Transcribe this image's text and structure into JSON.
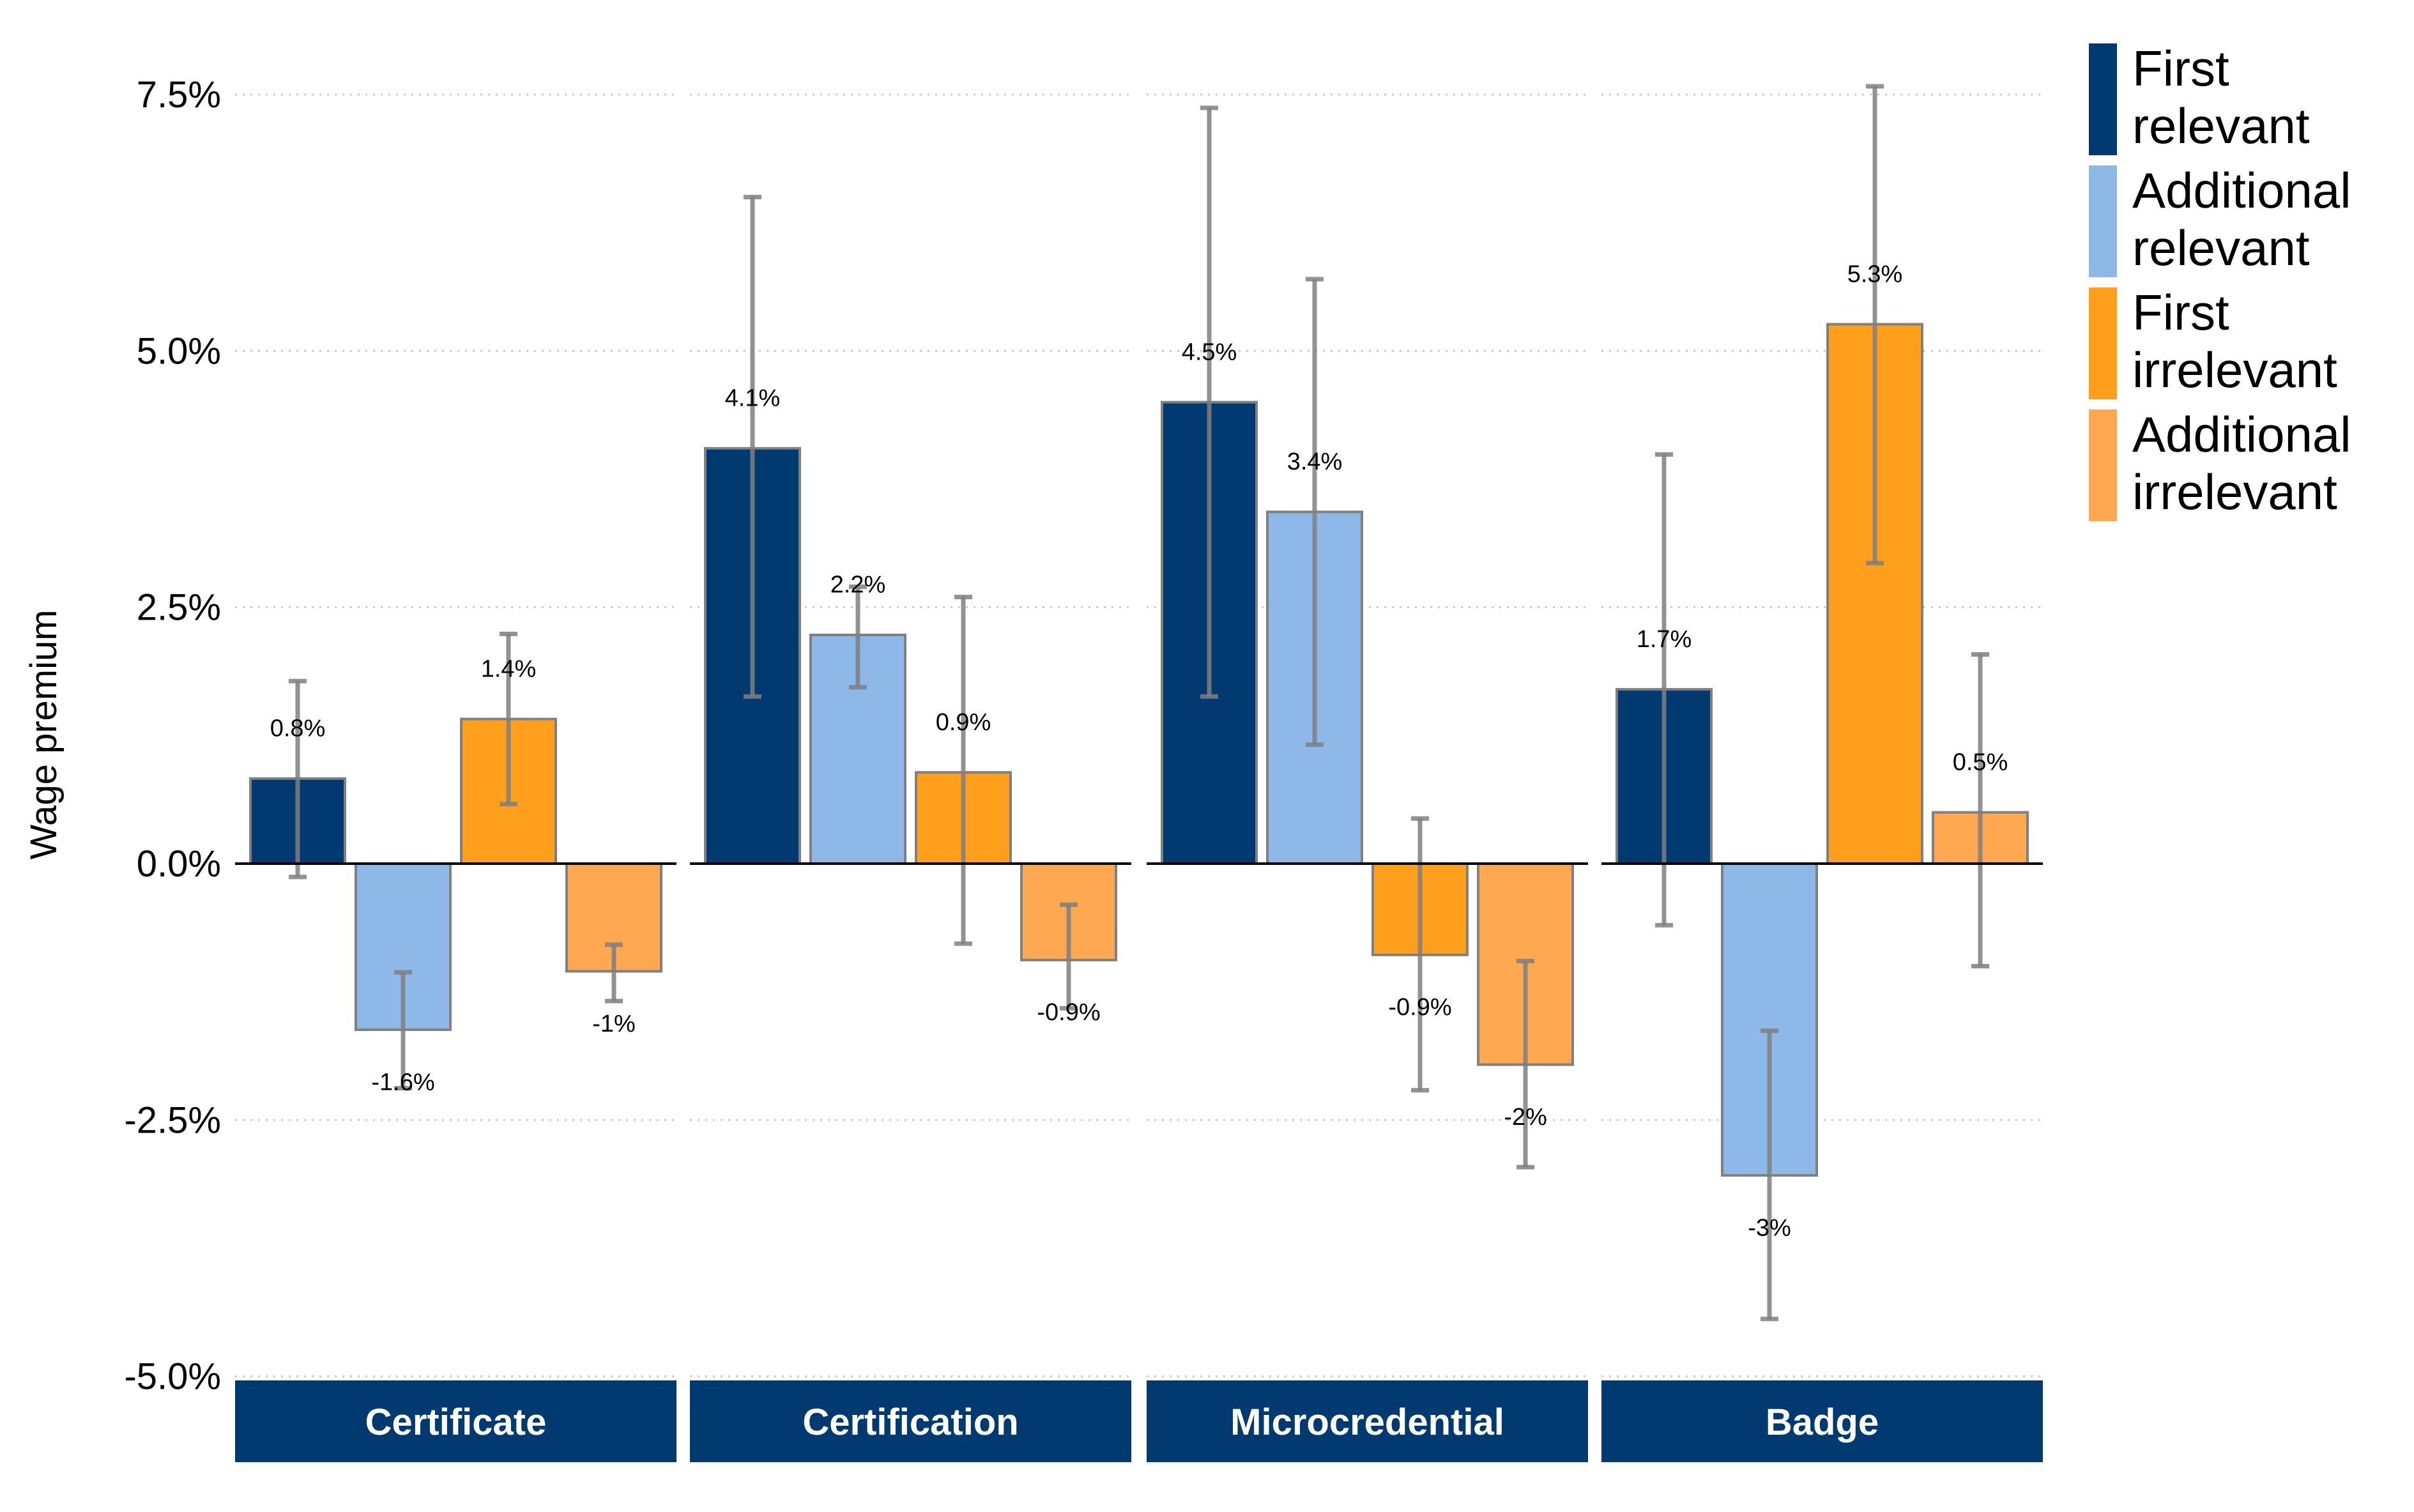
{
  "chart_data": {
    "type": "bar",
    "title": "",
    "xlabel": "",
    "ylabel": "Wage premium",
    "ylim": [
      -5,
      7.5
    ],
    "y_ticks": [
      "7.5%",
      "5.0%",
      "2.5%",
      "0.0%",
      "-2.5%",
      "-5.0%"
    ],
    "y_tick_values": [
      7.5,
      5.0,
      2.5,
      0.0,
      -2.5,
      -5.0
    ],
    "grid": "horizontal dotted",
    "legend_placement": "right",
    "facets": [
      "Certificate",
      "Certification",
      "Microcredential",
      "Badge"
    ],
    "series": [
      {
        "name": "First relevant",
        "color": "#003a70",
        "values": [
          0.83,
          4.05,
          4.5,
          1.7
        ],
        "labels": [
          "0.8%",
          "4.1%",
          "4.5%",
          "1.7%"
        ],
        "ci_low": [
          -0.13,
          1.63,
          1.63,
          -0.6
        ],
        "ci_high": [
          1.78,
          6.5,
          7.37,
          3.99
        ]
      },
      {
        "name": "Additional relevant",
        "color": "#8db8e8",
        "values": [
          -1.62,
          2.23,
          3.43,
          -3.04
        ],
        "labels": [
          "-1.6%",
          "2.2%",
          "3.4%",
          "-3%"
        ],
        "ci_low": [
          -2.19,
          1.72,
          1.16,
          -4.44
        ],
        "ci_high": [
          -1.06,
          2.7,
          5.7,
          -1.63
        ]
      },
      {
        "name": "First irrelevant",
        "color": "#ff9f1c",
        "values": [
          1.41,
          0.89,
          -0.89,
          5.26
        ],
        "labels": [
          "1.4%",
          "0.9%",
          "-0.9%",
          "5.3%"
        ],
        "ci_low": [
          0.58,
          -0.78,
          -2.21,
          2.93
        ],
        "ci_high": [
          2.24,
          2.6,
          0.44,
          7.58
        ]
      },
      {
        "name": "Additional irrelevant",
        "color": "#ffa852",
        "values": [
          -1.05,
          -0.94,
          -1.96,
          0.5
        ],
        "labels": [
          "-1%",
          "-0.9%",
          "-2%",
          "0.5%"
        ],
        "ci_low": [
          -1.34,
          -1.41,
          -2.96,
          -1.0
        ],
        "ci_high": [
          -0.79,
          -0.4,
          -0.95,
          2.04
        ]
      }
    ],
    "legend": [
      {
        "line1": "First",
        "line2": "relevant"
      },
      {
        "line1": "Additional",
        "line2": "relevant"
      },
      {
        "line1": "First",
        "line2": "irrelevant"
      },
      {
        "line1": "Additional",
        "line2": "irrelevant"
      }
    ],
    "strip_color": "#003a70",
    "errorbar_color": "#7f7f7f"
  }
}
